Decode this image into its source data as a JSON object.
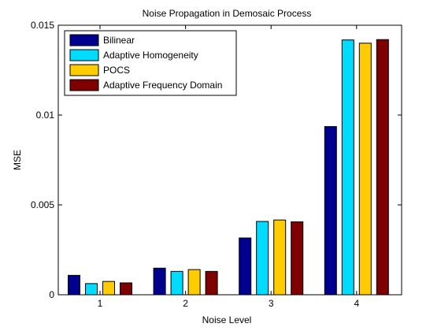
{
  "chart_data": {
    "type": "bar",
    "title": "Noise Propagation in Demosaic Process",
    "xlabel": "Noise Level",
    "ylabel": "MSE",
    "categories": [
      "1",
      "2",
      "3",
      "4"
    ],
    "ylim": [
      0,
      0.015
    ],
    "yticks": [
      0,
      0.005,
      0.01,
      0.015
    ],
    "ytick_labels": [
      "0",
      "0.005",
      "0.01",
      "0.015"
    ],
    "grid": false,
    "legend_position": "top-left",
    "series": [
      {
        "name": "Bilinear",
        "color": "#00008f",
        "values": [
          0.00108,
          0.00148,
          0.00316,
          0.00936
        ]
      },
      {
        "name": "Adaptive Homogeneity",
        "color": "#00dcff",
        "values": [
          0.00062,
          0.0013,
          0.00408,
          0.01418
        ]
      },
      {
        "name": "POCS",
        "color": "#ffcc00",
        "values": [
          0.00074,
          0.0014,
          0.00416,
          0.014
        ]
      },
      {
        "name": "Adaptive Frequency Domain",
        "color": "#7f0000",
        "values": [
          0.00066,
          0.0013,
          0.00406,
          0.0142
        ]
      }
    ]
  }
}
